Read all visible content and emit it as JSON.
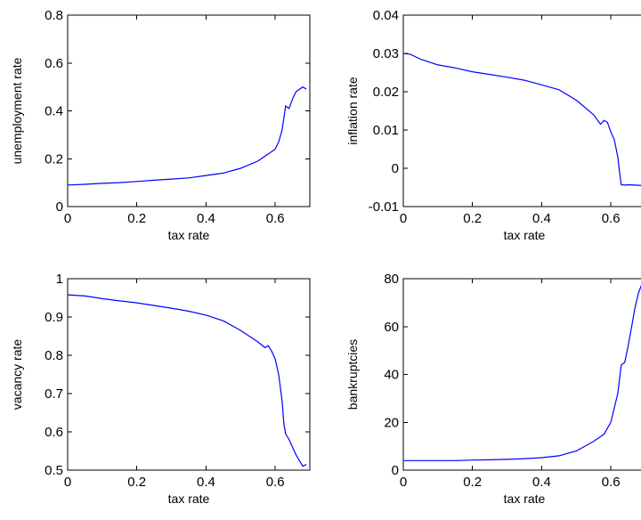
{
  "chart_data": [
    {
      "type": "line",
      "xlabel": "tax rate",
      "ylabel": "unemployment rate",
      "xlim": [
        0,
        0.7
      ],
      "ylim": [
        0,
        0.8
      ],
      "xticks": [
        "0",
        "0.2",
        "0.4",
        "0.6"
      ],
      "yticks": [
        "0",
        "0.2",
        "0.4",
        "0.6",
        "0.8"
      ],
      "grid": false,
      "series": [
        {
          "color": "#0000ff",
          "x": [
            0,
            0.05,
            0.1,
            0.15,
            0.2,
            0.25,
            0.3,
            0.35,
            0.4,
            0.45,
            0.5,
            0.55,
            0.58,
            0.6,
            0.61,
            0.62,
            0.63,
            0.64,
            0.65,
            0.66,
            0.67,
            0.68,
            0.69
          ],
          "y": [
            0.09,
            0.093,
            0.097,
            0.1,
            0.105,
            0.11,
            0.115,
            0.12,
            0.13,
            0.14,
            0.16,
            0.19,
            0.22,
            0.24,
            0.27,
            0.32,
            0.42,
            0.41,
            0.45,
            0.48,
            0.49,
            0.5,
            0.49
          ]
        }
      ]
    },
    {
      "type": "line",
      "xlabel": "tax rate",
      "ylabel": "inflation rate",
      "xlim": [
        0,
        0.7
      ],
      "ylim": [
        -0.01,
        0.04
      ],
      "xticks": [
        "0",
        "0.2",
        "0.4",
        "0.6"
      ],
      "yticks": [
        "-0.01",
        "0",
        "0.01",
        "0.02",
        "0.03",
        "0.04"
      ],
      "grid": false,
      "series": [
        {
          "color": "#0000ff",
          "x": [
            0,
            0.02,
            0.05,
            0.1,
            0.15,
            0.2,
            0.25,
            0.3,
            0.35,
            0.4,
            0.45,
            0.5,
            0.55,
            0.57,
            0.58,
            0.59,
            0.6,
            0.61,
            0.62,
            0.625,
            0.63,
            0.64,
            0.65,
            0.67,
            0.69
          ],
          "y": [
            0.03,
            0.0298,
            0.0285,
            0.027,
            0.0262,
            0.0252,
            0.0245,
            0.0238,
            0.023,
            0.0218,
            0.0205,
            0.0178,
            0.014,
            0.0115,
            0.0125,
            0.012,
            0.0095,
            0.0075,
            0.003,
            -0.001,
            -0.0043,
            -0.0044,
            -0.0043,
            -0.0044,
            -0.0045
          ]
        }
      ]
    },
    {
      "type": "line",
      "xlabel": "tax rate",
      "ylabel": "vacancy rate",
      "xlim": [
        0,
        0.7
      ],
      "ylim": [
        0.5,
        1
      ],
      "xticks": [
        "0",
        "0.2",
        "0.4",
        "0.6"
      ],
      "yticks": [
        "0.5",
        "0.6",
        "0.7",
        "0.8",
        "0.9",
        "1"
      ],
      "grid": false,
      "series": [
        {
          "color": "#0000ff",
          "x": [
            0,
            0.05,
            0.1,
            0.15,
            0.2,
            0.25,
            0.3,
            0.35,
            0.4,
            0.45,
            0.5,
            0.55,
            0.57,
            0.58,
            0.59,
            0.6,
            0.61,
            0.62,
            0.625,
            0.63,
            0.64,
            0.65,
            0.66,
            0.67,
            0.68,
            0.69
          ],
          "y": [
            0.958,
            0.955,
            0.948,
            0.942,
            0.937,
            0.93,
            0.923,
            0.915,
            0.905,
            0.89,
            0.865,
            0.835,
            0.82,
            0.825,
            0.81,
            0.79,
            0.75,
            0.68,
            0.62,
            0.595,
            0.58,
            0.56,
            0.54,
            0.525,
            0.51,
            0.515
          ]
        }
      ]
    },
    {
      "type": "line",
      "xlabel": "tax rate",
      "ylabel": "bankruptcies",
      "xlim": [
        0,
        0.7
      ],
      "ylim": [
        0,
        80
      ],
      "xticks": [
        "0",
        "0.2",
        "0.4",
        "0.6"
      ],
      "yticks": [
        "0",
        "20",
        "40",
        "60",
        "80"
      ],
      "grid": false,
      "series": [
        {
          "color": "#0000ff",
          "x": [
            0,
            0.05,
            0.1,
            0.15,
            0.2,
            0.25,
            0.3,
            0.35,
            0.4,
            0.45,
            0.5,
            0.55,
            0.58,
            0.6,
            0.61,
            0.62,
            0.63,
            0.64,
            0.65,
            0.66,
            0.67,
            0.68,
            0.69
          ],
          "y": [
            4,
            4,
            4,
            4,
            4.2,
            4.3,
            4.5,
            4.8,
            5.2,
            6,
            8,
            12,
            15,
            20,
            26,
            32,
            44,
            45,
            52,
            60,
            68,
            74,
            78
          ]
        }
      ]
    }
  ]
}
